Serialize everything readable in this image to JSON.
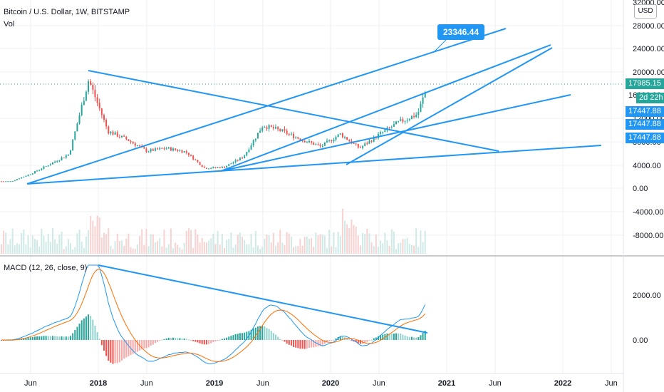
{
  "header": {
    "title": "Bitcoin / U.S. Dollar, 1W, BITSTAMP",
    "volume_label": "Vol",
    "indicator_label": "MACD (12, 26, close, 9)"
  },
  "currency_button": "USD",
  "annotation_callout": "23346.44",
  "price_tags": {
    "last_price": "17985.15",
    "countdown": "2d 22h",
    "tag_a": "17447.88",
    "tag_b": "17447.88",
    "tag_c": "17447.88",
    "partial_top": "32000.00",
    "partial_hidden": "16000.00"
  },
  "price_axis": {
    "ticks": [
      "28000.00",
      "24000.00",
      "20000.00",
      "12000.00",
      "8000.00",
      "4000.00",
      "0.00",
      "-4000.00",
      "-8000.00"
    ]
  },
  "macd_axis": {
    "ticks": [
      "2000.00",
      "0.00"
    ]
  },
  "time_axis": {
    "labels": [
      "Jun",
      "2018",
      "Jun",
      "2019",
      "Jun",
      "2020",
      "Jun",
      "2021",
      "Jun",
      "2022",
      "Jun"
    ]
  },
  "colors": {
    "up": "#26a69a",
    "down": "#ef5350",
    "trendline": "#2196f3",
    "macd_line": "#2196f3",
    "signal_line": "#ff6d00",
    "last_price_tag": "#26a69a",
    "callout": "#2196f3"
  },
  "chart_data": [
    {
      "type": "candlestick",
      "series": [
        {
          "name": "Bitcoin / U.S. Dollar",
          "x": [
            "2017-04",
            "2017-06",
            "2017-08",
            "2017-10",
            "2017-12",
            "2018-02",
            "2018-04",
            "2018-06",
            "2018-08",
            "2018-10",
            "2018-12",
            "2019-02",
            "2019-04",
            "2019-06",
            "2019-08",
            "2019-10",
            "2019-12",
            "2020-02",
            "2020-04",
            "2020-06",
            "2020-08",
            "2020-10",
            "2020-11"
          ],
          "values": [
            1200,
            2500,
            4200,
            6000,
            19000,
            10000,
            8500,
            6500,
            7000,
            6400,
            3500,
            3700,
            5500,
            11000,
            10000,
            8500,
            7300,
            9500,
            7000,
            9400,
            11500,
            13000,
            17985
          ]
        }
      ],
      "ylim": [
        -10000,
        32000
      ]
    },
    {
      "type": "bar",
      "title": "Vol"
    },
    {
      "type": "line",
      "title": "MACD (12, 26, close, 9)",
      "ylim": [
        -1500,
        3500
      ]
    }
  ]
}
